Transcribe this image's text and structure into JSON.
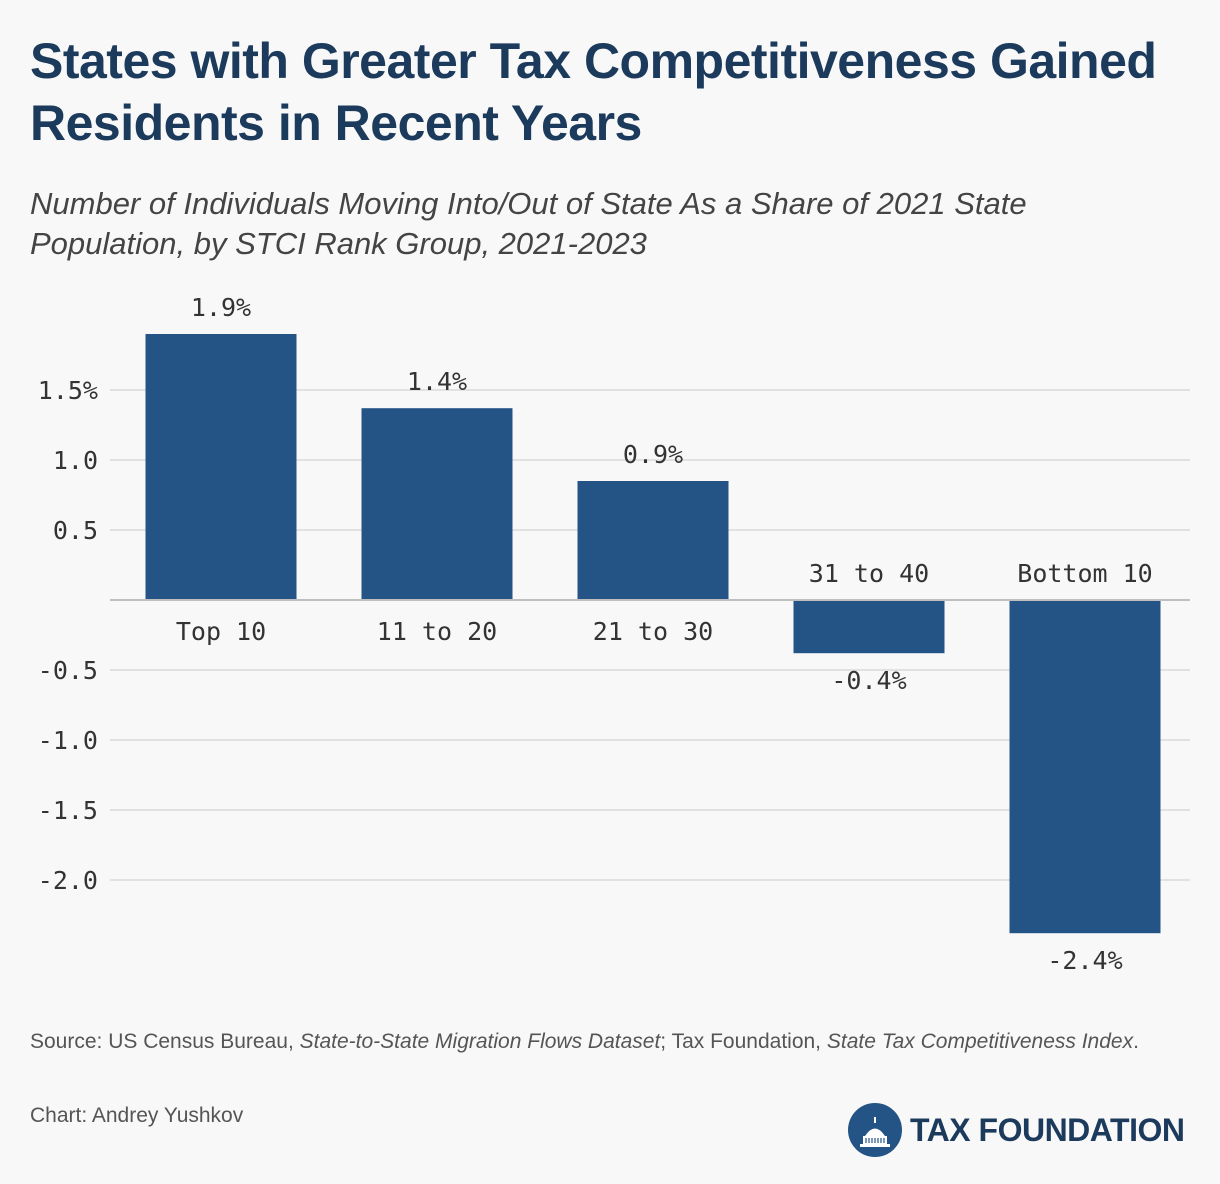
{
  "title": "States with Greater Tax Competitiveness Gained Residents in Recent Years",
  "subtitle": "Number of Individuals Moving Into/Out of State As a Share of 2021 State Population, by STCI Rank Group, 2021-2023",
  "source": {
    "prefix": "Source: US Census Bureau, ",
    "dataset": "State-to-State Migration Flows Dataset",
    "middle": "; Tax Foundation, ",
    "index": "State Tax Competitiveness Index",
    "suffix": "."
  },
  "credit": "Chart: Andrey Yushkov",
  "logo": {
    "text": "TAX FOUNDATION"
  },
  "colors": {
    "bar": "#245486",
    "title": "#1b3a5c",
    "grid": "#d9d9d9",
    "baseline": "#bfbfbf"
  },
  "chart_data": {
    "type": "bar",
    "categories": [
      "Top 10",
      "11 to 20",
      "21 to 30",
      "31 to 40",
      "Bottom 10"
    ],
    "values": [
      1.9,
      1.37,
      0.85,
      -0.38,
      -2.38
    ],
    "value_labels": [
      "1.9%",
      "1.4%",
      "0.9%",
      "-0.4%",
      "-2.4%"
    ],
    "yticks": [
      1.5,
      1.0,
      0.5,
      -0.5,
      -1.0,
      -1.5,
      -2.0
    ],
    "ytick_labels": [
      "1.5%",
      "1.0",
      "0.5",
      "-0.5",
      "-1.0",
      "-1.5",
      "-2.0"
    ],
    "ylim": [
      -2.6,
      2.2
    ],
    "grid": true,
    "legend": "none",
    "xlabel": "",
    "ylabel": ""
  }
}
